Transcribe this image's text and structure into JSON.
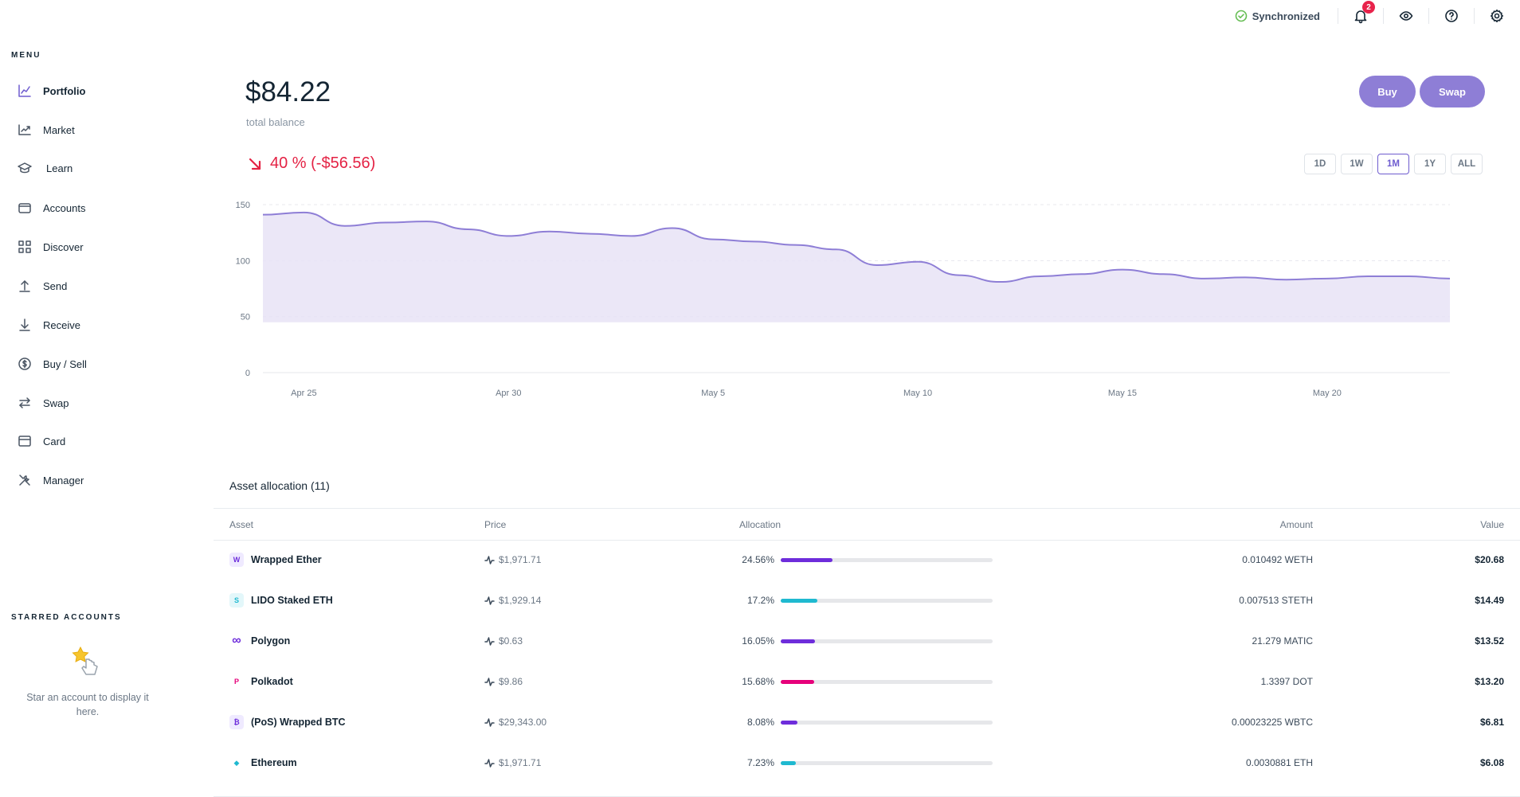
{
  "sidebar": {
    "menu_title": "MENU",
    "items": [
      {
        "label": "Portfolio",
        "icon": "chart-line-icon",
        "active": true
      },
      {
        "label": "Market",
        "icon": "trend-icon"
      },
      {
        "label": "Learn",
        "icon": "graduation-cap-icon"
      },
      {
        "label": "Accounts",
        "icon": "wallet-icon"
      },
      {
        "label": "Discover",
        "icon": "grid-icon"
      },
      {
        "label": "Send",
        "icon": "arrow-up-icon"
      },
      {
        "label": "Receive",
        "icon": "arrow-down-icon"
      },
      {
        "label": "Buy / Sell",
        "icon": "dollar-circle-icon"
      },
      {
        "label": "Swap",
        "icon": "swap-icon"
      },
      {
        "label": "Card",
        "icon": "card-icon"
      },
      {
        "label": "Manager",
        "icon": "tools-icon"
      }
    ],
    "starred_title": "STARRED ACCOUNTS",
    "starred_empty": "Star an account to display it here."
  },
  "topbar": {
    "sync_label": "Synchronized",
    "notification_count": "2"
  },
  "balance": {
    "amount": "$84.22",
    "label": "total balance",
    "change": "40 % (-$56.56)",
    "buy_label": "Buy",
    "swap_label": "Swap"
  },
  "ranges": [
    {
      "label": "1D"
    },
    {
      "label": "1W"
    },
    {
      "label": "1M",
      "active": true
    },
    {
      "label": "1Y"
    },
    {
      "label": "ALL"
    }
  ],
  "chart_data": {
    "type": "area",
    "x": [
      "Apr 24",
      "Apr 25",
      "Apr 26",
      "Apr 27",
      "Apr 28",
      "Apr 29",
      "Apr 30",
      "May 1",
      "May 2",
      "May 3",
      "May 4",
      "May 5",
      "May 6",
      "May 7",
      "May 8",
      "May 9",
      "May 10",
      "May 11",
      "May 12",
      "May 13",
      "May 14",
      "May 15",
      "May 16",
      "May 17",
      "May 18",
      "May 19",
      "May 20",
      "May 21",
      "May 22",
      "May 23"
    ],
    "values": [
      141,
      143,
      131,
      134,
      135,
      128,
      122,
      126,
      124,
      122,
      129,
      119,
      117,
      114,
      110,
      96,
      99,
      87,
      81,
      86,
      88,
      92,
      88,
      84,
      85,
      83,
      84,
      86,
      86,
      84
    ],
    "xticks": [
      "Apr 25",
      "Apr 30",
      "May 5",
      "May 10",
      "May 15",
      "May 20"
    ],
    "yticks": [
      0,
      50,
      100,
      150
    ],
    "ylim": [
      0,
      150
    ],
    "color": "#8e7ed6",
    "fill": "#e7e3f6"
  },
  "assets": {
    "title": "Asset allocation (11)",
    "headers": {
      "asset": "Asset",
      "price": "Price",
      "allocation": "Allocation",
      "amount": "Amount",
      "value": "Value"
    },
    "rows": [
      {
        "name": "Wrapped Ether",
        "price": "$1,971.71",
        "pct": "24.56%",
        "share": 24.56,
        "amount": "0.010492 WETH",
        "value": "$20.68",
        "color": "#6e2ddb",
        "glyph": "W",
        "glyph_bg": "#efeaff"
      },
      {
        "name": "LIDO Staked ETH",
        "price": "$1,929.14",
        "pct": "17.2%",
        "share": 17.2,
        "amount": "0.007513 STETH",
        "value": "$14.49",
        "color": "#1fb9d0",
        "glyph": "S",
        "glyph_bg": "#e3f7fa"
      },
      {
        "name": "Polygon",
        "price": "$0.63",
        "pct": "16.05%",
        "share": 16.05,
        "amount": "21.279 MATIC",
        "value": "$13.52",
        "color": "#6e2ddb",
        "glyph": "∞",
        "glyph_bg": "#ffffff"
      },
      {
        "name": "Polkadot",
        "price": "$9.86",
        "pct": "15.68%",
        "share": 15.68,
        "amount": "1.3397 DOT",
        "value": "$13.20",
        "color": "#e6007a",
        "glyph": "P",
        "glyph_bg": "#ffffff"
      },
      {
        "name": "(PoS) Wrapped BTC",
        "price": "$29,343.00",
        "pct": "8.08%",
        "share": 8.08,
        "amount": "0.00023225 WBTC",
        "value": "$6.81",
        "color": "#6e2ddb",
        "glyph": "₿",
        "glyph_bg": "#efeaff"
      },
      {
        "name": "Ethereum",
        "price": "$1,971.71",
        "pct": "7.23%",
        "share": 7.23,
        "amount": "0.0030881 ETH",
        "value": "$6.08",
        "color": "#1fb9d0",
        "glyph": "◆",
        "glyph_bg": "#ffffff"
      }
    ]
  }
}
